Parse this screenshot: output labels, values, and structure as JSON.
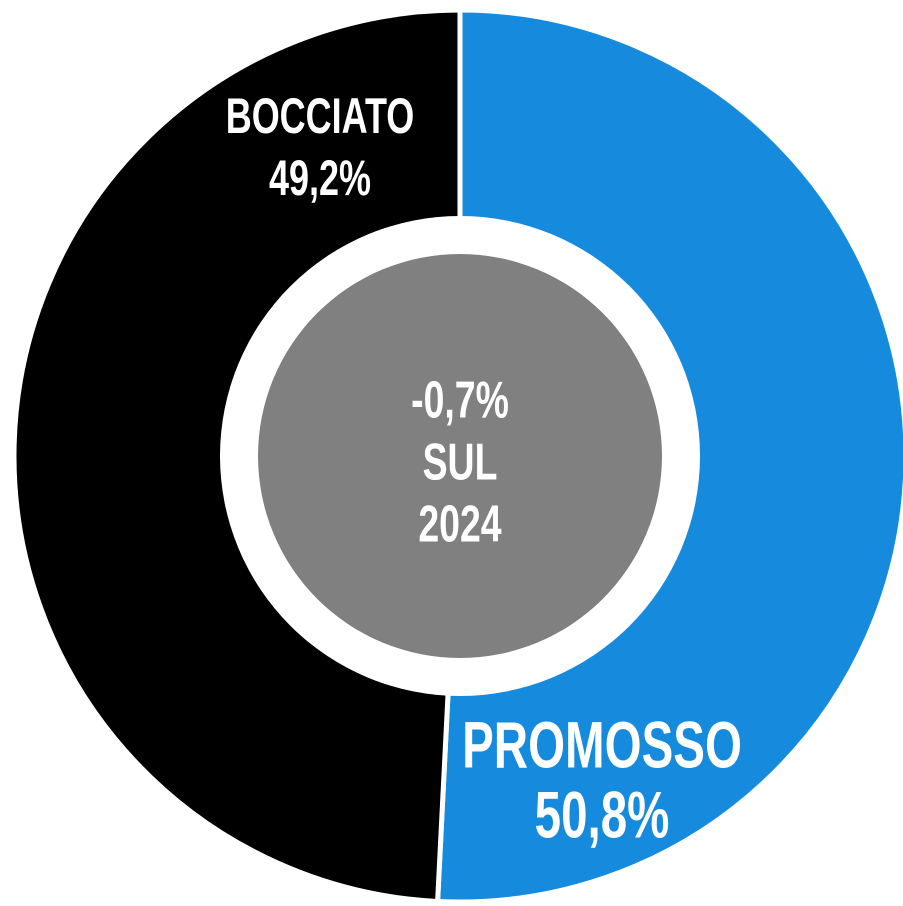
{
  "chart_data": {
    "type": "donut",
    "categories": [
      "PROMOSSO",
      "BOCCIATO"
    ],
    "values": [
      50.8,
      49.2
    ],
    "value_labels": [
      "50,8%",
      "49,2%"
    ],
    "colors": [
      "#168bde",
      "#000000"
    ],
    "center_text": [
      "-0,7%",
      "SUL",
      "2024"
    ],
    "center_color": "#808080"
  }
}
